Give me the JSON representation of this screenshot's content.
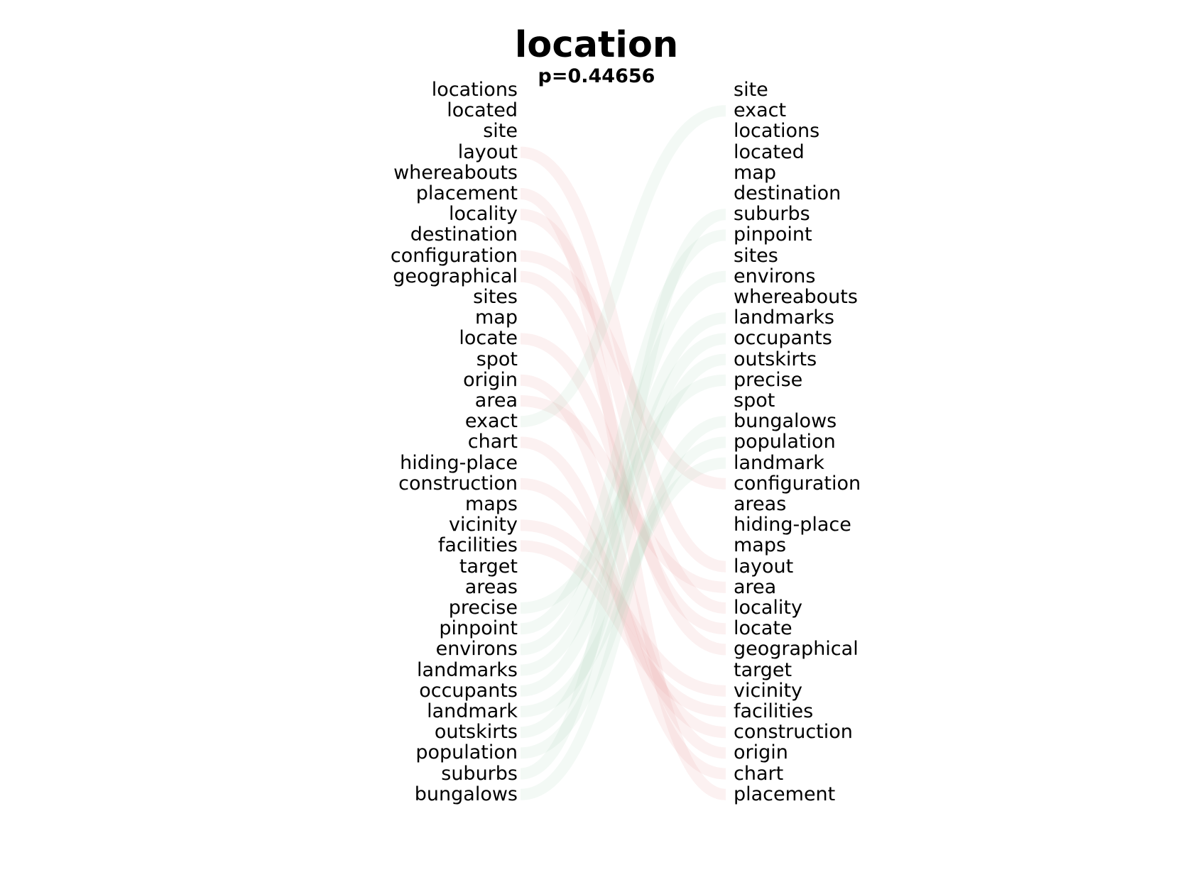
{
  "title": "location",
  "subtitle": "p=0.44656",
  "chart_data": {
    "type": "slope-ranking",
    "left_ranking": [
      "locations",
      "located",
      "site",
      "layout",
      "whereabouts",
      "placement",
      "locality",
      "destination",
      "configuration",
      "geographical",
      "sites",
      "map",
      "locate",
      "spot",
      "origin",
      "area",
      "exact",
      "chart",
      "hiding-place",
      "construction",
      "maps",
      "vicinity",
      "facilities",
      "target",
      "areas",
      "precise",
      "pinpoint",
      "environs",
      "landmarks",
      "occupants",
      "landmark",
      "outskirts",
      "population",
      "suburbs",
      "bungalows"
    ],
    "right_ranking": [
      "site",
      "exact",
      "locations",
      "located",
      "map",
      "destination",
      "suburbs",
      "pinpoint",
      "sites",
      "environs",
      "whereabouts",
      "landmarks",
      "occupants",
      "outskirts",
      "precise",
      "spot",
      "bungalows",
      "population",
      "landmark",
      "configuration",
      "areas",
      "hiding-place",
      "maps",
      "layout",
      "area",
      "locality",
      "locate",
      "geographical",
      "target",
      "vicinity",
      "facilities",
      "construction",
      "origin",
      "chart",
      "placement"
    ],
    "colors": {
      "decrease": "#e89a9a",
      "increase": "#a8d8b8"
    }
  }
}
